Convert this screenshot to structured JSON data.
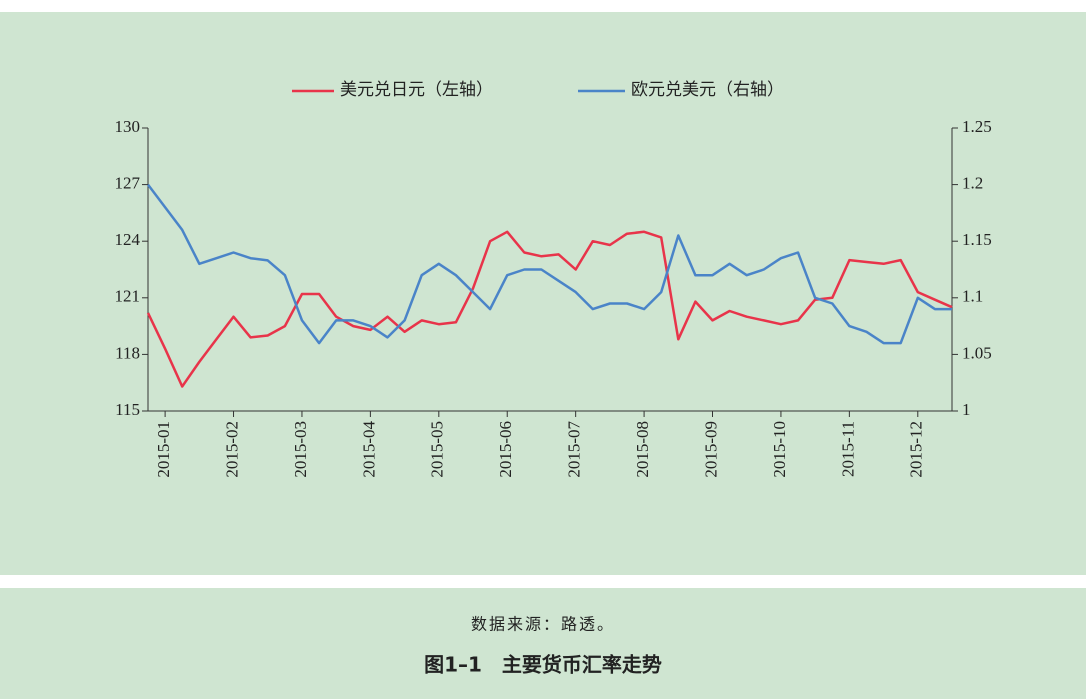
{
  "chart_data": {
    "type": "line",
    "categories": [
      null,
      "2015-01",
      null,
      null,
      null,
      "2015-02",
      null,
      null,
      null,
      "2015-03",
      null,
      null,
      null,
      "2015-04",
      null,
      null,
      null,
      "2015-05",
      null,
      null,
      null,
      "2015-06",
      null,
      null,
      null,
      "2015-07",
      null,
      null,
      null,
      "2015-08",
      null,
      null,
      null,
      "2015-09",
      null,
      null,
      null,
      "2015-10",
      null,
      null,
      null,
      "2015-11",
      null,
      null,
      null,
      "2015-12",
      null,
      null
    ],
    "series": [
      {
        "name": "美元兑日元（左轴）",
        "color": "#e8344a",
        "values": [
          120.2,
          118.3,
          116.3,
          117.6,
          118.8,
          120.0,
          118.9,
          119.0,
          119.5,
          121.2,
          121.2,
          120.0,
          119.5,
          119.3,
          120.0,
          119.2,
          119.8,
          119.6,
          119.7,
          121.5,
          124.0,
          124.5,
          123.4,
          123.2,
          123.3,
          122.5,
          124.0,
          123.8,
          124.4,
          124.5,
          124.2,
          118.8,
          120.8,
          119.8,
          120.3,
          120.0,
          119.8,
          119.6,
          119.8,
          120.9,
          121.0,
          123.0,
          122.9,
          122.8,
          123.0,
          121.3,
          120.9,
          120.5
        ]
      },
      {
        "name": "欧元兑美元（右轴）",
        "color": "#4a84c8",
        "axis": "y2",
        "values": [
          1.2,
          1.18,
          1.16,
          1.13,
          1.135,
          1.14,
          1.135,
          1.133,
          1.12,
          1.08,
          1.06,
          1.08,
          1.08,
          1.075,
          1.065,
          1.08,
          1.12,
          1.13,
          1.12,
          1.105,
          1.09,
          1.12,
          1.125,
          1.125,
          1.115,
          1.105,
          1.09,
          1.095,
          1.095,
          1.09,
          1.105,
          1.155,
          1.12,
          1.12,
          1.13,
          1.12,
          1.125,
          1.135,
          1.14,
          1.1,
          1.095,
          1.075,
          1.07,
          1.06,
          1.06,
          1.1,
          1.09,
          1.09
        ]
      }
    ],
    "ylim": [
      115,
      130
    ],
    "yticks": [
      115,
      118,
      121,
      124,
      127,
      130
    ],
    "y2lim": [
      1,
      1.25
    ],
    "y2ticks": [
      1,
      1.05,
      1.1,
      1.15,
      1.2,
      1.25
    ],
    "source": "数据来源：路透。",
    "caption": "图1–1　主要货币汇率走势"
  }
}
